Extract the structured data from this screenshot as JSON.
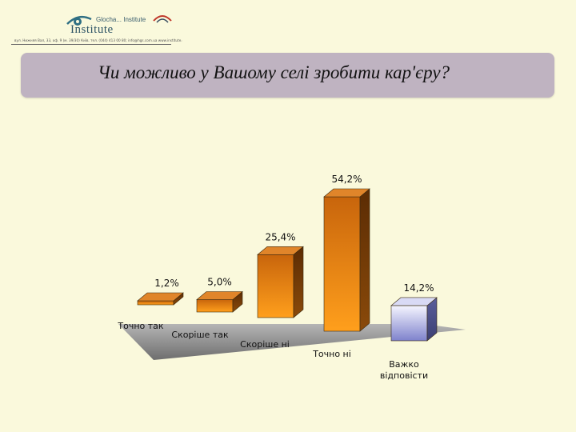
{
  "logo": {
    "line1": "Glocha... Institute",
    "line2": "Institute",
    "address": "вул. Нижняя Вал, 33, оф. 9 (м. 39/30) Київ. тел. (044) 413 00 80; info@hgs.com.ua www.institute.glocha.com.ua"
  },
  "title": "Чи можливо у Вашому селі зробити кар'єру?",
  "chart_data": {
    "type": "bar",
    "categories": [
      "Точно так",
      "Скоріше так",
      "Скоріше ні",
      "Точно ні",
      "Важко відповісти"
    ],
    "values": [
      1.2,
      5.0,
      25.4,
      54.2,
      14.2
    ],
    "value_labels": [
      "1,2%",
      "5,0%",
      "25,4%",
      "54,2%",
      "14,2%"
    ],
    "colors": {
      "orange_front_top": "#F29A22",
      "orange_front_bottom": "#C0620A",
      "orange_side": "#7A3E05",
      "blue_front_top": "#E8E9FF",
      "blue_front_bottom": "#7C80C8",
      "blue_side": "#4A4E8C",
      "floor": "#8C8C8C"
    },
    "ylim": [
      0,
      60
    ],
    "grid": false,
    "legend": "none"
  }
}
